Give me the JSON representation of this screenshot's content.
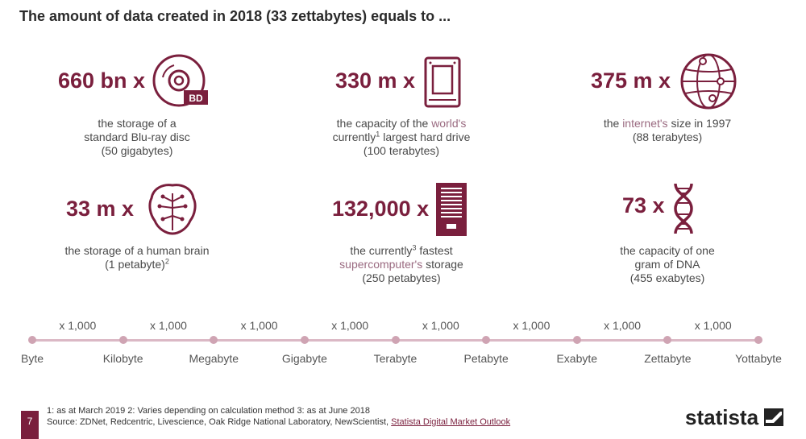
{
  "title": "The amount of data created in 2018 (33 zettabytes) equals to ...",
  "stats": [
    {
      "multiplier": "660 bn x",
      "icon": "blu-ray-disc-icon",
      "icon_label": "BD",
      "lines": [
        "the storage of a",
        "standard Blu-ray disc",
        "(50 gigabytes)"
      ]
    },
    {
      "multiplier": "330 m x",
      "icon": "hard-drive-icon",
      "line1_a": "the capacity of the ",
      "line1_b": "world's",
      "line2_a": "currently",
      "line2_sup": "1",
      "line2_b": " largest hard drive",
      "line3": "(100 terabytes)"
    },
    {
      "multiplier": "375 m x",
      "icon": "globe-icon",
      "line1_a": "the ",
      "line1_b": "internet's",
      "line1_c": " size in 1997",
      "line2": "(88 terabytes)"
    },
    {
      "multiplier": "33 m x",
      "icon": "brain-icon",
      "line1": "the storage of a human brain",
      "line2_a": "(1 petabyte)",
      "line2_sup": "2"
    },
    {
      "multiplier": "132,000 x",
      "icon": "server-icon",
      "line1_a": "the currently",
      "line1_sup": "3",
      "line1_b": " fastest",
      "line2_a": "supercomputer's",
      "line2_b": " storage",
      "line3": "(250 petabytes)"
    },
    {
      "multiplier": "73 x",
      "icon": "dna-icon",
      "lines": [
        "the capacity of one",
        "gram of DNA",
        "(455 exabytes)"
      ]
    }
  ],
  "scale": {
    "step_label": "x 1,000",
    "units": [
      "Byte",
      "Kilobyte",
      "Megabyte",
      "Gigabyte",
      "Terabyte",
      "Petabyte",
      "Exabyte",
      "Zettabyte",
      "Yottabyte"
    ]
  },
  "footer": {
    "page_number": "7",
    "notes": "1: as at March 2019 2: Varies depending on calculation method 3: as at June 2018",
    "source_prefix": "Source: ZDNet, Redcentric, Livescience, Oak Ridge National Laboratory, NewScientist, ",
    "source_link": "Statista Digital Market Outlook"
  },
  "logo": "statista",
  "colors": {
    "accent": "#7a1f3d",
    "scale_line": "#dbb8c5",
    "dot": "#cfa4b3"
  }
}
